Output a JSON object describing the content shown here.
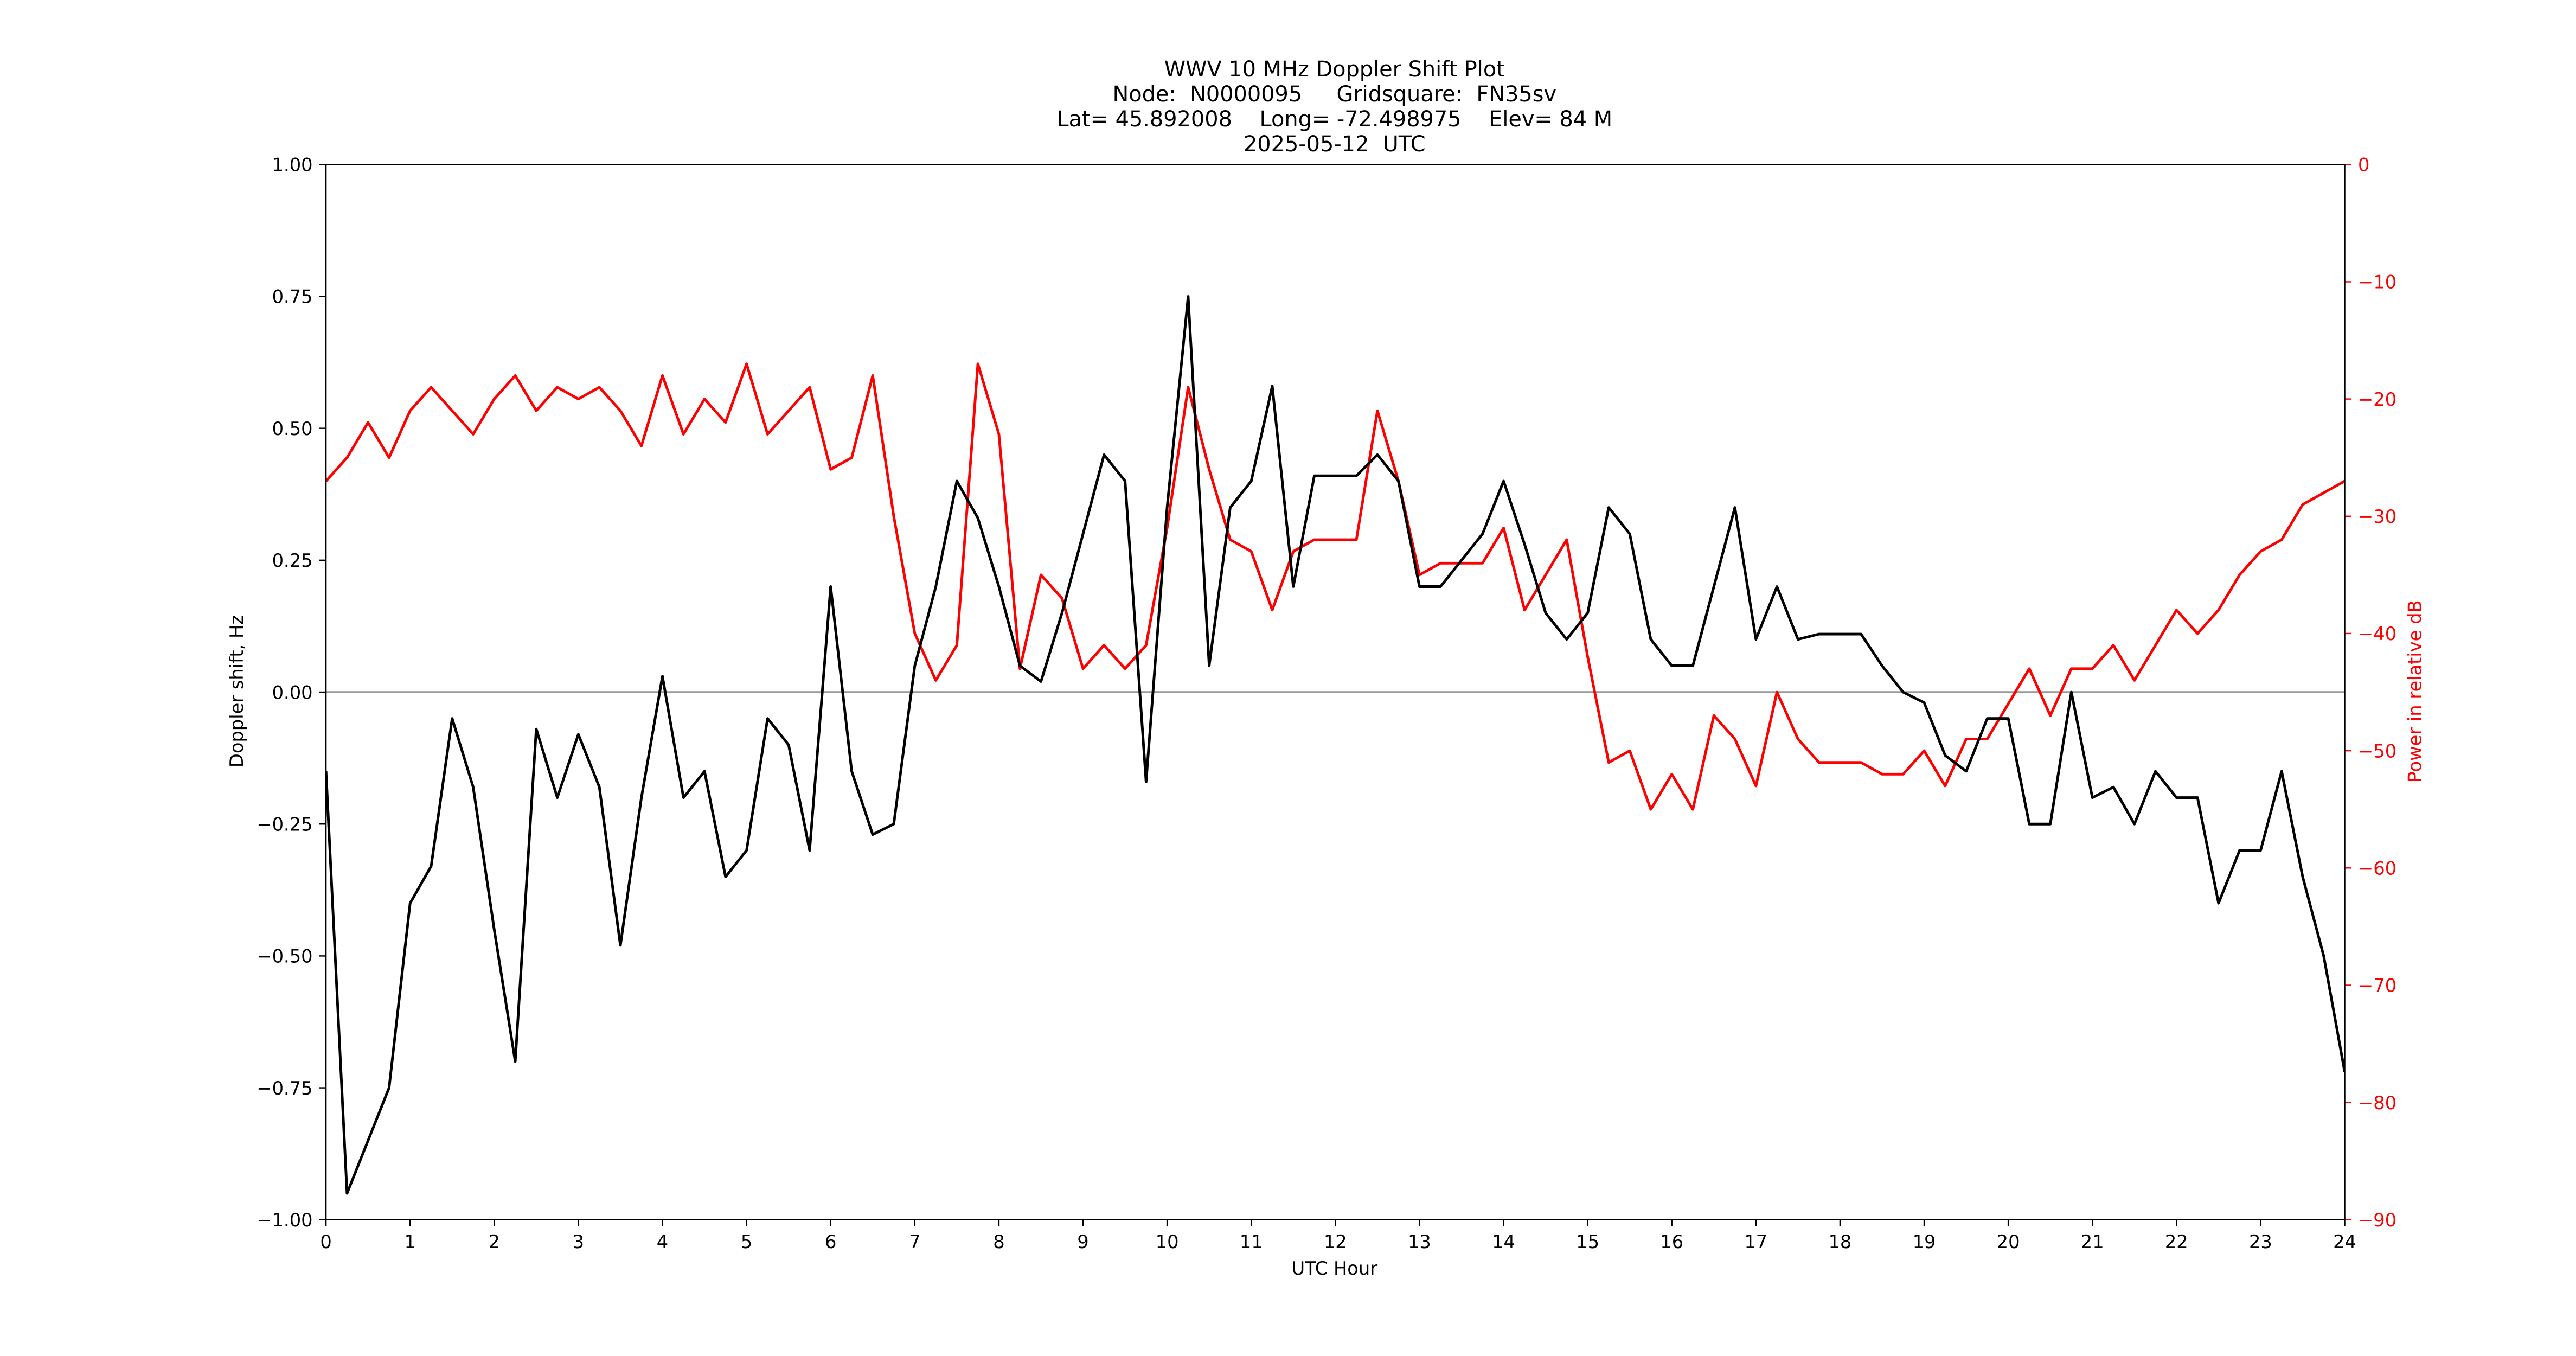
{
  "chart_data": {
    "type": "line",
    "title": "WWV 10 MHz Doppler Shift Plot",
    "subtitle": [
      "Node:  N0000095     Gridsquare:  FN35sv",
      "Lat= 45.892008    Long= -72.498975    Elev= 84 M",
      "2025-05-12  UTC"
    ],
    "x_label": "UTC Hour",
    "y_label": "Doppler shift, Hz",
    "y2_label": "Power in relative dB",
    "x": [
      0,
      0.25,
      0.5,
      0.75,
      1,
      1.25,
      1.5,
      1.75,
      2,
      2.25,
      2.5,
      2.75,
      3,
      3.25,
      3.5,
      3.75,
      4,
      4.25,
      4.5,
      4.75,
      5,
      5.25,
      5.5,
      5.75,
      6,
      6.25,
      6.5,
      6.75,
      7,
      7.25,
      7.5,
      7.75,
      8,
      8.25,
      8.5,
      8.75,
      9,
      9.25,
      9.5,
      9.75,
      10,
      10.25,
      10.5,
      10.75,
      11,
      11.25,
      11.5,
      11.75,
      12,
      12.25,
      12.5,
      12.75,
      13,
      13.25,
      13.5,
      13.75,
      14,
      14.25,
      14.5,
      14.75,
      15,
      15.25,
      15.5,
      15.75,
      16,
      16.25,
      16.5,
      16.75,
      17,
      17.25,
      17.5,
      17.75,
      18,
      18.25,
      18.5,
      18.75,
      19,
      19.25,
      19.5,
      19.75,
      20,
      20.25,
      20.5,
      20.75,
      21,
      21.25,
      21.5,
      21.75,
      22,
      22.25,
      22.5,
      22.75,
      23,
      23.25,
      23.5,
      23.75,
      24
    ],
    "series": [
      {
        "name": "Doppler shift",
        "color": "#000000",
        "axis": "y",
        "values": [
          -0.15,
          -0.95,
          -0.85,
          -0.75,
          -0.4,
          -0.33,
          -0.05,
          -0.18,
          -0.45,
          -0.7,
          -0.07,
          -0.2,
          -0.08,
          -0.18,
          -0.48,
          -0.2,
          0.03,
          -0.2,
          -0.15,
          -0.35,
          -0.3,
          -0.05,
          -0.1,
          -0.3,
          0.2,
          -0.15,
          -0.27,
          -0.25,
          0.05,
          0.2,
          0.4,
          0.33,
          0.2,
          0.05,
          0.02,
          0.15,
          0.3,
          0.45,
          0.4,
          -0.17,
          0.35,
          0.75,
          0.05,
          0.35,
          0.4,
          0.58,
          0.2,
          0.41,
          0.41,
          0.41,
          0.45,
          0.4,
          0.2,
          0.2,
          0.25,
          0.3,
          0.4,
          0.28,
          0.15,
          0.1,
          0.15,
          0.35,
          0.3,
          0.1,
          0.05,
          0.05,
          0.2,
          0.35,
          0.1,
          0.2,
          0.1,
          0.11,
          0.11,
          0.11,
          0.05,
          0,
          -0.02,
          -0.12,
          -0.15,
          -0.05,
          -0.05,
          -0.25,
          -0.25,
          0,
          -0.2,
          -0.18,
          -0.25,
          -0.15,
          -0.2,
          -0.2,
          -0.4,
          -0.3,
          -0.3,
          -0.15,
          -0.35,
          -0.5,
          -0.72
        ]
      },
      {
        "name": "Power",
        "color": "#ff0000",
        "axis": "y2",
        "values": [
          -27,
          -25,
          -22,
          -25,
          -21,
          -19,
          -21,
          -23,
          -20,
          -18,
          -21,
          -19,
          -20,
          -19,
          -21,
          -24,
          -18,
          -23,
          -20,
          -22,
          -17,
          -23,
          -21,
          -19,
          -26,
          -25,
          -18,
          -30,
          -40,
          -44,
          -41,
          -17,
          -23,
          -43,
          -35,
          -37,
          -43,
          -41,
          -43,
          -41,
          -31,
          -19,
          -26,
          -32,
          -33,
          -38,
          -33,
          -32,
          -32,
          -32,
          -21,
          -27,
          -35,
          -34,
          -34,
          -34,
          -31,
          -38,
          -35,
          -32,
          -42,
          -51,
          -50,
          -55,
          -52,
          -55,
          -47,
          -49,
          -53,
          -45,
          -49,
          -51,
          -51,
          -51,
          -52,
          -52,
          -50,
          -53,
          -49,
          -49,
          -46,
          -43,
          -47,
          -43,
          -43,
          -41,
          -44,
          -41,
          -38,
          -40,
          -38,
          -35,
          -33,
          -32,
          -29,
          -28,
          -27
        ]
      }
    ],
    "xlim": [
      0,
      24
    ],
    "xticks": [
      0,
      1,
      2,
      3,
      4,
      5,
      6,
      7,
      8,
      9,
      10,
      11,
      12,
      13,
      14,
      15,
      16,
      17,
      18,
      19,
      20,
      21,
      22,
      23,
      24
    ],
    "ylim": [
      -1,
      1
    ],
    "yticks": [
      {
        "value": -1,
        "label": "−1.00"
      },
      {
        "value": -0.75,
        "label": "−0.75"
      },
      {
        "value": -0.5,
        "label": "−0.50"
      },
      {
        "value": -0.25,
        "label": "−0.25"
      },
      {
        "value": 0,
        "label": "0.00"
      },
      {
        "value": 0.25,
        "label": "0.25"
      },
      {
        "value": 0.5,
        "label": "0.50"
      },
      {
        "value": 0.75,
        "label": "0.75"
      },
      {
        "value": 1,
        "label": "1.00"
      }
    ],
    "y2lim": [
      -90,
      0
    ],
    "y2ticks": [
      {
        "value": -90,
        "label": "−90"
      },
      {
        "value": -80,
        "label": "−80"
      },
      {
        "value": -70,
        "label": "−70"
      },
      {
        "value": -60,
        "label": "−60"
      },
      {
        "value": -50,
        "label": "−50"
      },
      {
        "value": -40,
        "label": "−40"
      },
      {
        "value": -30,
        "label": "−30"
      },
      {
        "value": -20,
        "label": "−20"
      },
      {
        "value": -10,
        "label": "−10"
      },
      0
    ],
    "y2_color": "#ff0000",
    "hline": 0,
    "hline_color": "#999999",
    "grid": false
  }
}
